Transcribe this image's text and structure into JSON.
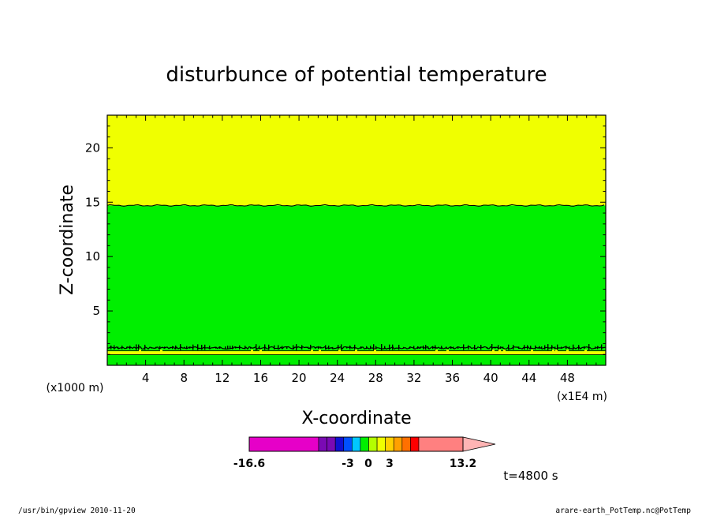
{
  "chart_data": {
    "type": "contour",
    "title": "disturbunce of potential temperature",
    "xlabel": "X-coordinate",
    "ylabel": "Z-coordinate",
    "x_unit_label": "(x1E4 m)",
    "z_unit_label": "(x1000 m)",
    "xlim": [
      0,
      52
    ],
    "ylim": [
      0,
      23
    ],
    "x_ticks": [
      4,
      8,
      12,
      16,
      20,
      24,
      28,
      32,
      36,
      40,
      44,
      48
    ],
    "y_ticks": [
      5,
      10,
      15,
      20
    ],
    "regions": [
      {
        "z_from": 14.7,
        "z_to": 23,
        "color": "#f0ff00"
      },
      {
        "z_from": 0,
        "z_to": 14.7,
        "color": "#00ef00"
      }
    ],
    "layers": [
      {
        "z": 1.6,
        "color": "#000000",
        "kind": "noisy contour band"
      },
      {
        "z": 1.15,
        "color": "#f0ff00",
        "kind": "thin yellow band"
      }
    ],
    "colorbar": {
      "min_label": "-16.6",
      "max_label": "13.2",
      "mid_labels": [
        "-3",
        "0",
        "3"
      ],
      "segments": [
        {
          "from": -16.6,
          "to": -3.0,
          "color": "#e600c8"
        },
        {
          "from": -3.0,
          "to": -2.5,
          "color": "#7a0ab4"
        },
        {
          "from": -2.5,
          "to": -2.0,
          "color": "#7a0ab4"
        },
        {
          "from": -2.0,
          "to": -1.5,
          "color": "#1010d2"
        },
        {
          "from": -1.5,
          "to": -1.0,
          "color": "#0050ff"
        },
        {
          "from": -1.0,
          "to": -0.5,
          "color": "#00c8ff"
        },
        {
          "from": -0.5,
          "to": 0.0,
          "color": "#00ef00"
        },
        {
          "from": 0.0,
          "to": 0.5,
          "color": "#b4ff00"
        },
        {
          "from": 0.5,
          "to": 1.0,
          "color": "#f0ff00"
        },
        {
          "from": 1.0,
          "to": 1.5,
          "color": "#ffd000"
        },
        {
          "from": 1.5,
          "to": 2.0,
          "color": "#ffa000"
        },
        {
          "from": 2.0,
          "to": 2.5,
          "color": "#ff7000"
        },
        {
          "from": 2.5,
          "to": 3.0,
          "color": "#ff0000"
        },
        {
          "from": 3.0,
          "to": 13.2,
          "color": "#ff8080"
        }
      ],
      "extend_color": "#ffb4b4"
    },
    "time_label": "t=4800 s"
  },
  "footer": {
    "left": "/usr/bin/gpview   2010-11-20",
    "right": "arare-earth_PotTemp.nc@PotTemp"
  }
}
